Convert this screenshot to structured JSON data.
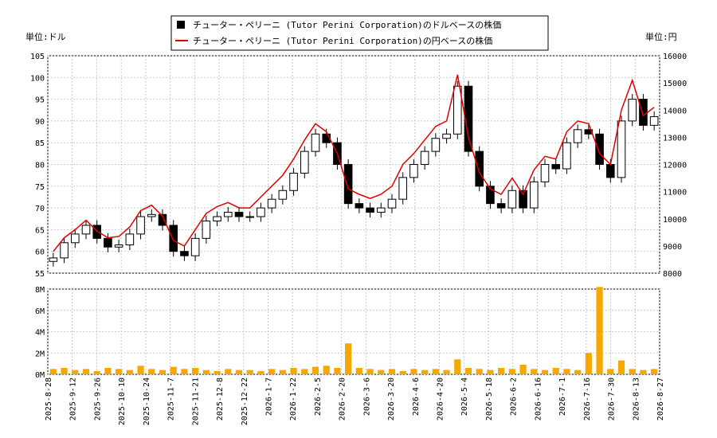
{
  "legend": {
    "usd_label": "チューター・ペリーニ (Tutor Perini Corporation)のドルベースの株価",
    "jpy_label": "チューター・ペリーニ (Tutor Perini Corporation)の円ベースの株価"
  },
  "units": {
    "left": "単位:ドル",
    "right": "単位:円"
  },
  "colors": {
    "candle": "#000000",
    "jpy_line": "#e00000",
    "volume": "#f5a800",
    "grid": "#c8c8c8"
  },
  "chart_data": {
    "type": "candlestick",
    "left_axis": {
      "min": 55,
      "max": 105,
      "ticks": [
        55,
        60,
        65,
        70,
        75,
        80,
        85,
        90,
        95,
        100,
        105
      ]
    },
    "right_axis": {
      "min": 8000,
      "max": 16000,
      "ticks": [
        8000,
        9000,
        10000,
        11000,
        12000,
        13000,
        14000,
        15000,
        16000
      ]
    },
    "volume_axis": {
      "min": 0,
      "max": 8000000,
      "ticks": [
        "0M",
        "2M",
        "4M",
        "6M",
        "8M"
      ]
    },
    "x_tick_labels": [
      "2025-8-28",
      "2025-9-12",
      "2025-9-26",
      "2025-10-10",
      "2025-10-24",
      "2025-11-7",
      "2025-11-21",
      "2025-12-8",
      "2025-12-22",
      "2026-1-7",
      "2026-1-22",
      "2026-2-5",
      "2026-2-20",
      "2026-3-6",
      "2026-3-20",
      "2026-4-6",
      "2026-4-20",
      "2026-5-4",
      "2026-5-18",
      "2026-6-2",
      "2026-6-16",
      "2026-7-1",
      "2026-7-16",
      "2026-7-30",
      "2026-8-13",
      "2026-8-27"
    ],
    "usd_close": [
      58.5,
      62,
      64,
      66,
      63,
      61,
      61.5,
      64,
      68,
      68.5,
      66,
      60,
      59,
      63,
      67,
      68,
      69,
      68,
      68,
      70,
      72,
      74,
      78,
      83,
      87,
      85,
      80,
      71,
      70,
      69,
      70,
      72,
      77,
      80,
      83,
      86,
      87,
      98,
      83,
      75,
      71,
      70,
      74,
      70,
      76,
      80,
      79,
      85,
      88,
      87,
      80,
      77,
      90,
      95,
      89,
      91
    ],
    "jpy_close": [
      8800,
      9300,
      9600,
      9950,
      9550,
      9300,
      9350,
      9700,
      10300,
      10500,
      10100,
      9200,
      9000,
      9600,
      10200,
      10450,
      10600,
      10400,
      10400,
      10800,
      11200,
      11600,
      12200,
      12900,
      13500,
      13200,
      12400,
      11100,
      10900,
      10750,
      10900,
      11200,
      12000,
      12400,
      12900,
      13400,
      13600,
      15300,
      13000,
      11700,
      11100,
      10900,
      11500,
      10900,
      11800,
      12300,
      12200,
      13200,
      13600,
      13500,
      12400,
      12000,
      14000,
      15100,
      13800,
      14100
    ],
    "volume_m": [
      0.5,
      0.6,
      0.4,
      0.5,
      0.3,
      0.6,
      0.5,
      0.4,
      0.8,
      0.5,
      0.4,
      0.7,
      0.5,
      0.6,
      0.4,
      0.3,
      0.5,
      0.4,
      0.4,
      0.3,
      0.5,
      0.4,
      0.6,
      0.5,
      0.7,
      0.8,
      0.6,
      2.9,
      0.6,
      0.5,
      0.4,
      0.5,
      0.3,
      0.5,
      0.4,
      0.5,
      0.4,
      1.4,
      0.6,
      0.5,
      0.4,
      0.6,
      0.5,
      0.9,
      0.5,
      0.4,
      0.6,
      0.5,
      0.4,
      2.0,
      8.2,
      0.5,
      1.3,
      0.5,
      0.4,
      0.5
    ]
  }
}
